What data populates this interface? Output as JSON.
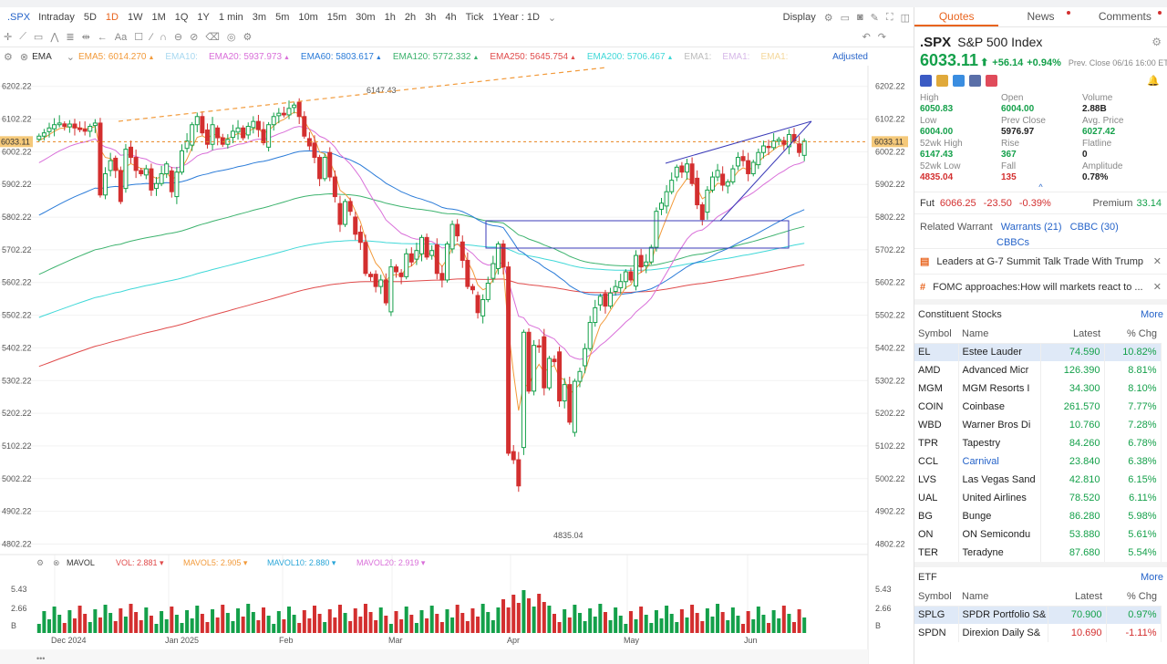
{
  "toolbar": {
    "symbol": ".SPX",
    "timeframes": [
      "Intraday",
      "5D",
      "1D",
      "1W",
      "1M",
      "1Q",
      "1Y",
      "1 min",
      "3m",
      "5m",
      "10m",
      "15m",
      "30m",
      "1h",
      "2h",
      "3h",
      "4h",
      "Tick"
    ],
    "active_timeframe": "1D",
    "range": "1Year : 1D",
    "display": "Display"
  },
  "indicators": {
    "main": "EMA",
    "emas": [
      {
        "label": "EMA5:",
        "value": "6014.270",
        "color": "#f29a3a"
      },
      {
        "label": "EMA10:",
        "value": "",
        "color": "#a8d8f0"
      },
      {
        "label": "EMA20:",
        "value": "5937.973",
        "color": "#d96fd9"
      },
      {
        "label": "EMA60:",
        "value": "5803.617",
        "color": "#2a7bd8"
      },
      {
        "label": "EMA120:",
        "value": "5772.332",
        "color": "#3db36e"
      },
      {
        "label": "EMA250:",
        "value": "5645.754",
        "color": "#e04b4b"
      },
      {
        "label": "EMA200:",
        "value": "5706.467",
        "color": "#40d8d8"
      },
      {
        "label": "EMA1:",
        "value": "",
        "color": "#bbbbbb"
      },
      {
        "label": "EMA1:",
        "value": "",
        "color": "#d6b8e8"
      },
      {
        "label": "EMA1:",
        "value": "",
        "color": "#f4d79a"
      }
    ],
    "adjusted": "Adjusted",
    "vol_name": "MAVOL",
    "vols": [
      {
        "label": "VOL:",
        "value": "2.881",
        "color": "#e04b4b"
      },
      {
        "label": "MAVOL5:",
        "value": "2.905",
        "color": "#f29a3a"
      },
      {
        "label": "MAVOL10:",
        "value": "2.880",
        "color": "#2aa6d8"
      },
      {
        "label": "MAVOL20:",
        "value": "2.919",
        "color": "#d96fd9"
      }
    ]
  },
  "chart_data": {
    "type": "candlestick",
    "current_price_label": "6033.11",
    "y_ticks": [
      "6202.22",
      "6102.22",
      "6002.22",
      "5902.22",
      "5802.22",
      "5702.22",
      "5602.22",
      "5502.22",
      "5402.22",
      "5302.22",
      "5202.22",
      "5102.22",
      "5002.22",
      "4902.22",
      "4802.22"
    ],
    "ylim": [
      4770,
      6260
    ],
    "high_label": "6147.43",
    "low_label": "4835.04",
    "x_ticks": [
      "Dec 2024",
      "Jan 2025",
      "Feb",
      "Mar",
      "Apr",
      "May",
      "Jun"
    ],
    "vol_ticks": [
      "5.43",
      "2.66",
      "B"
    ],
    "closes": [
      6050,
      6060,
      6075,
      6085,
      6090,
      6080,
      6087,
      6075,
      6070,
      6065,
      6080,
      6090,
      5870,
      5935,
      5975,
      5945,
      5850,
      6010,
      5985,
      5945,
      5935,
      5950,
      5885,
      5905,
      5935,
      5965,
      5880,
      5940,
      6005,
      6035,
      6085,
      6110,
      6060,
      6025,
      6085,
      6045,
      6025,
      6040,
      6065,
      6075,
      6045,
      6080,
      6095,
      6070,
      6030,
      6085,
      6110,
      6120,
      6115,
      6135,
      6145,
      6110,
      6050,
      6020,
      5985,
      5920,
      5985,
      5925,
      5865,
      5780,
      5850,
      5820,
      5750,
      5725,
      5630,
      5620,
      5590,
      5610,
      5540,
      5650,
      5635,
      5620,
      5690,
      5665,
      5700,
      5740,
      5680,
      5700,
      5630,
      5610,
      5720,
      5780,
      5745,
      5670,
      5590,
      5580,
      5510,
      5550,
      5600,
      5660,
      5720,
      5650,
      5080,
      5060,
      4980,
      5450,
      5270,
      5410,
      5405,
      5280,
      5370,
      5360,
      5240,
      5290,
      5175,
      5300,
      5330,
      5400,
      5480,
      5525,
      5560,
      5530,
      5570,
      5590,
      5605,
      5635,
      5610,
      5685,
      5650,
      5665,
      5710,
      5820,
      5845,
      5880,
      5915,
      5955,
      5940,
      5965,
      5905,
      5840,
      5795,
      5885,
      5925,
      5945,
      5900,
      5910,
      5950,
      5985,
      5975,
      5935,
      5970,
      6000,
      6020,
      6015,
      6035,
      6040,
      6025,
      6055,
      6035,
      6000,
      6035
    ],
    "ema5_end": "6014.270",
    "ema20_end": "5937.973"
  },
  "sidebar": {
    "tabs": [
      "Quotes",
      "News",
      "Comments"
    ],
    "symbol": ".SPX",
    "name": "S&P 500 Index",
    "price": "6033.11",
    "arrow": "⬆",
    "change": "+56.14",
    "change_pct": "+0.94%",
    "prev_close_label": "Prev.  Close 06/16 16:00 ET",
    "stats": [
      {
        "label": "High",
        "value": "6050.83",
        "cls": "g"
      },
      {
        "label": "Open",
        "value": "6004.00",
        "cls": "g"
      },
      {
        "label": "Volume",
        "value": "2.88B",
        "cls": ""
      },
      {
        "label": "Low",
        "value": "6004.00",
        "cls": "g"
      },
      {
        "label": "Prev Close",
        "value": "5976.97",
        "cls": ""
      },
      {
        "label": "Avg. Price",
        "value": "6027.42",
        "cls": "g"
      },
      {
        "label": "52wk High",
        "value": "6147.43",
        "cls": "g"
      },
      {
        "label": "Rise",
        "value": "367",
        "cls": "g"
      },
      {
        "label": "Flatline",
        "value": "0",
        "cls": ""
      },
      {
        "label": "52wk Low",
        "value": "4835.04",
        "cls": "r"
      },
      {
        "label": "Fall",
        "value": "135",
        "cls": "r"
      },
      {
        "label": "Amplitude",
        "value": "0.78%",
        "cls": ""
      }
    ],
    "fut": {
      "label": "Fut",
      "price": "6066.25",
      "chg": "-23.50",
      "pct": "-0.39%",
      "premium_label": "Premium",
      "premium": "33.14"
    },
    "warrant": {
      "label": "Related Warrant",
      "w": "Warrants (21)",
      "c": "CBBC (30)",
      "cb": "CBBCs"
    },
    "news": [
      "Leaders at G-7 Summit Talk Trade With Trump",
      "FOMC approaches:How will markets react to ..."
    ],
    "constituent_title": "Constituent Stocks",
    "more": "More",
    "headers": [
      "Symbol",
      "Name",
      "Latest",
      "% Chg"
    ],
    "stocks": [
      {
        "s": "EL",
        "n": "Estee Lauder",
        "l": "74.590",
        "c": "10.82%"
      },
      {
        "s": "AMD",
        "n": "Advanced Micr",
        "l": "126.390",
        "c": "8.81%"
      },
      {
        "s": "MGM",
        "n": "MGM Resorts I",
        "l": "34.300",
        "c": "8.10%"
      },
      {
        "s": "COIN",
        "n": "Coinbase",
        "l": "261.570",
        "c": "7.77%"
      },
      {
        "s": "WBD",
        "n": "Warner Bros Di",
        "l": "10.760",
        "c": "7.28%"
      },
      {
        "s": "TPR",
        "n": "Tapestry",
        "l": "84.260",
        "c": "6.78%"
      },
      {
        "s": "CCL",
        "n": "Carnival",
        "l": "23.840",
        "c": "6.38%"
      },
      {
        "s": "LVS",
        "n": "Las Vegas Sand",
        "l": "42.810",
        "c": "6.15%"
      },
      {
        "s": "UAL",
        "n": "United Airlines",
        "l": "78.520",
        "c": "6.11%"
      },
      {
        "s": "BG",
        "n": "Bunge",
        "l": "86.280",
        "c": "5.98%"
      },
      {
        "s": "ON",
        "n": "ON Semicondu",
        "l": "53.880",
        "c": "5.61%"
      },
      {
        "s": "TER",
        "n": "Teradyne",
        "l": "87.680",
        "c": "5.54%"
      }
    ],
    "etf_title": "ETF",
    "etfs": [
      {
        "s": "SPLG",
        "n": "SPDR Portfolio S&",
        "l": "70.900",
        "c": "0.97%",
        "neg": false
      },
      {
        "s": "SPDN",
        "n": "Direxion Daily S&",
        "l": "10.690",
        "c": "-1.11%",
        "neg": true
      }
    ]
  }
}
